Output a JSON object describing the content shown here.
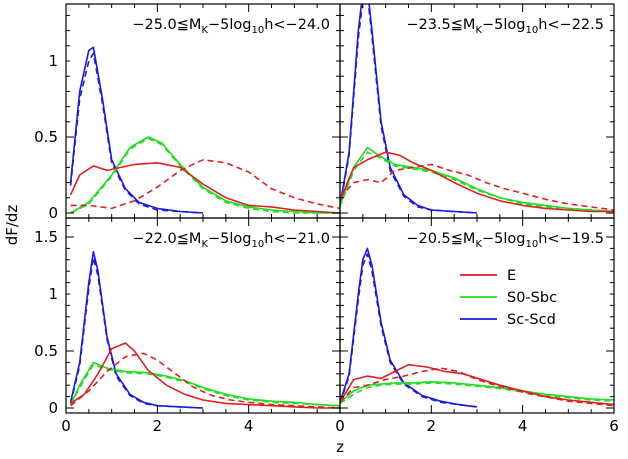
{
  "chart_data": {
    "type": "line",
    "xlabel": "z",
    "ylabel": "dF/dz",
    "xlim": [
      0,
      6
    ],
    "ylim": [
      -0.05,
      1.65
    ],
    "x_ticks": [
      0,
      2,
      4,
      6
    ],
    "y_ticks": [
      0,
      0.5,
      1,
      1.5
    ],
    "y_tick_labels": [
      "0",
      "0.5",
      "1",
      "1.5"
    ],
    "x_tick_labels": [
      "0",
      "2",
      "4",
      "6"
    ],
    "shared_axes": true,
    "layout": "2x2",
    "colors": {
      "E": "#e02020",
      "S0-Sbc": "#22dd22",
      "Sc-Scd": "#1a1ae0"
    },
    "legend": {
      "placement": "panel-4-right",
      "entries": [
        {
          "label": "E",
          "color": "#e02020"
        },
        {
          "label": "S0-Sbc",
          "color": "#22dd22"
        },
        {
          "label": "Sc-Scd",
          "color": "#1a1ae0"
        }
      ]
    },
    "panels": [
      {
        "title": {
          "pre": "−25.0≦M",
          "sub1": "K",
          "mid": "−5log",
          "sub2": "10",
          "post": "h<−24.0"
        },
        "series": [
          {
            "group": "Sc-Scd",
            "style": "solid",
            "x": [
              0.1,
              0.3,
              0.5,
              0.6,
              0.8,
              1.0,
              1.3,
              1.6,
              2.0,
              2.5,
              3.0
            ],
            "y": [
              0.2,
              0.8,
              1.07,
              1.09,
              0.75,
              0.35,
              0.16,
              0.07,
              0.03,
              0.01,
              0.0
            ]
          },
          {
            "group": "Sc-Scd",
            "style": "dashed",
            "x": [
              0.1,
              0.3,
              0.5,
              0.6,
              0.8,
              1.0,
              1.3,
              1.6,
              2.0,
              2.5,
              3.0
            ],
            "y": [
              0.18,
              0.75,
              1.0,
              1.05,
              0.72,
              0.33,
              0.15,
              0.06,
              0.02,
              0.01,
              0.0
            ]
          },
          {
            "group": "S0-Sbc",
            "style": "solid",
            "x": [
              0.1,
              0.5,
              1.0,
              1.4,
              1.8,
              2.1,
              2.5,
              3.0,
              3.5,
              4.0,
              4.5,
              5.0,
              5.5,
              6.0
            ],
            "y": [
              0.0,
              0.07,
              0.25,
              0.43,
              0.5,
              0.46,
              0.32,
              0.17,
              0.08,
              0.04,
              0.02,
              0.01,
              0.0,
              0.0
            ]
          },
          {
            "group": "S0-Sbc",
            "style": "dashed",
            "x": [
              0.1,
              0.5,
              1.0,
              1.4,
              1.8,
              2.1,
              2.5,
              3.0,
              3.5,
              4.0,
              4.5,
              5.0,
              5.5,
              6.0
            ],
            "y": [
              0.0,
              0.06,
              0.24,
              0.42,
              0.49,
              0.45,
              0.31,
              0.16,
              0.07,
              0.03,
              0.01,
              0.0,
              0.0,
              0.0
            ]
          },
          {
            "group": "E",
            "style": "solid",
            "x": [
              0.1,
              0.3,
              0.6,
              0.9,
              1.2,
              1.5,
              2.0,
              2.5,
              3.0,
              3.5,
              4.0,
              4.5,
              5.0,
              5.5,
              6.0
            ],
            "y": [
              0.12,
              0.25,
              0.31,
              0.28,
              0.3,
              0.32,
              0.33,
              0.3,
              0.19,
              0.1,
              0.05,
              0.04,
              0.02,
              0.01,
              0.0
            ]
          },
          {
            "group": "E",
            "style": "dashed",
            "x": [
              0.1,
              0.5,
              1.0,
              1.5,
              2.0,
              2.5,
              3.0,
              3.5,
              4.0,
              4.5,
              5.0,
              5.5,
              6.0
            ],
            "y": [
              0.05,
              0.05,
              0.03,
              0.08,
              0.17,
              0.28,
              0.35,
              0.33,
              0.27,
              0.16,
              0.1,
              0.06,
              0.03
            ]
          }
        ]
      },
      {
        "title": {
          "pre": "−23.5≦M",
          "sub1": "K",
          "mid": "−5log",
          "sub2": "10",
          "post": "h<−22.5"
        },
        "series": [
          {
            "group": "Sc-Scd",
            "style": "solid",
            "x": [
              0.0,
              0.2,
              0.4,
              0.5,
              0.6,
              0.7,
              0.9,
              1.1,
              1.4,
              1.7,
              2.0,
              2.5,
              3.0
            ],
            "y": [
              0.05,
              0.4,
              1.2,
              1.45,
              1.48,
              1.2,
              0.6,
              0.3,
              0.12,
              0.05,
              0.02,
              0.01,
              0.0
            ]
          },
          {
            "group": "Sc-Scd",
            "style": "dashed",
            "x": [
              0.0,
              0.2,
              0.4,
              0.5,
              0.6,
              0.7,
              0.9,
              1.1,
              1.4,
              1.7,
              2.0,
              2.5,
              3.0
            ],
            "y": [
              0.04,
              0.38,
              1.15,
              1.4,
              1.44,
              1.16,
              0.57,
              0.28,
              0.11,
              0.04,
              0.02,
              0.01,
              0.0
            ]
          },
          {
            "group": "S0-Sbc",
            "style": "solid",
            "x": [
              0.0,
              0.3,
              0.6,
              0.9,
              1.2,
              1.6,
              2.0,
              2.5,
              3.0,
              3.5,
              4.0,
              4.5,
              5.0,
              5.5,
              6.0
            ],
            "y": [
              0.05,
              0.3,
              0.43,
              0.37,
              0.32,
              0.3,
              0.28,
              0.23,
              0.16,
              0.1,
              0.07,
              0.05,
              0.03,
              0.02,
              0.01
            ]
          },
          {
            "group": "S0-Sbc",
            "style": "dashed",
            "x": [
              0.0,
              0.3,
              0.6,
              0.9,
              1.2,
              1.6,
              2.0,
              2.5,
              3.0,
              3.5,
              4.0,
              4.5,
              5.0,
              5.5,
              6.0
            ],
            "y": [
              0.04,
              0.28,
              0.4,
              0.36,
              0.31,
              0.29,
              0.27,
              0.22,
              0.15,
              0.1,
              0.06,
              0.04,
              0.03,
              0.02,
              0.01
            ]
          },
          {
            "group": "E",
            "style": "solid",
            "x": [
              0.0,
              0.3,
              0.6,
              1.0,
              1.3,
              1.6,
              2.0,
              2.5,
              3.0,
              3.5,
              4.0,
              4.5,
              5.0,
              5.5,
              6.0
            ],
            "y": [
              0.08,
              0.3,
              0.35,
              0.4,
              0.38,
              0.33,
              0.28,
              0.2,
              0.13,
              0.08,
              0.05,
              0.03,
              0.02,
              0.01,
              0.01
            ]
          },
          {
            "group": "E",
            "style": "dashed",
            "x": [
              0.0,
              0.3,
              0.6,
              0.9,
              1.2,
              1.6,
              2.0,
              2.4,
              2.8,
              3.2,
              3.6,
              4.0,
              4.5,
              5.0,
              5.5,
              6.0
            ],
            "y": [
              0.1,
              0.2,
              0.22,
              0.2,
              0.28,
              0.3,
              0.32,
              0.28,
              0.25,
              0.2,
              0.16,
              0.13,
              0.09,
              0.06,
              0.04,
              0.02
            ]
          }
        ]
      },
      {
        "title": {
          "pre": "−22.0≦M",
          "sub1": "K",
          "mid": "−5log",
          "sub2": "10",
          "post": "h<−21.0"
        },
        "series": [
          {
            "group": "Sc-Scd",
            "style": "solid",
            "x": [
              0.1,
              0.3,
              0.5,
              0.6,
              0.7,
              0.9,
              1.1,
              1.4,
              1.7,
              2.0,
              2.5,
              3.0
            ],
            "y": [
              0.05,
              0.4,
              1.1,
              1.37,
              1.2,
              0.62,
              0.3,
              0.12,
              0.05,
              0.02,
              0.01,
              0.0
            ]
          },
          {
            "group": "Sc-Scd",
            "style": "dashed",
            "x": [
              0.1,
              0.3,
              0.5,
              0.6,
              0.7,
              0.9,
              1.1,
              1.4,
              1.7,
              2.0,
              2.5,
              3.0
            ],
            "y": [
              0.04,
              0.37,
              1.05,
              1.32,
              1.16,
              0.6,
              0.28,
              0.11,
              0.04,
              0.02,
              0.01,
              0.0
            ]
          },
          {
            "group": "S0-Sbc",
            "style": "solid",
            "x": [
              0.1,
              0.3,
              0.6,
              0.9,
              1.3,
              1.8,
              2.2,
              2.6,
              3.0,
              3.5,
              4.0,
              4.5,
              5.0,
              5.5,
              6.0
            ],
            "y": [
              0.03,
              0.2,
              0.4,
              0.35,
              0.32,
              0.31,
              0.28,
              0.24,
              0.18,
              0.12,
              0.08,
              0.06,
              0.05,
              0.03,
              0.02
            ]
          },
          {
            "group": "S0-Sbc",
            "style": "dashed",
            "x": [
              0.1,
              0.3,
              0.6,
              0.9,
              1.3,
              1.8,
              2.2,
              2.6,
              3.0,
              3.5,
              4.0,
              4.5,
              5.0,
              5.5,
              6.0
            ],
            "y": [
              0.03,
              0.18,
              0.38,
              0.34,
              0.31,
              0.3,
              0.27,
              0.23,
              0.17,
              0.11,
              0.07,
              0.05,
              0.04,
              0.03,
              0.02
            ]
          },
          {
            "group": "E",
            "style": "solid",
            "x": [
              0.1,
              0.4,
              0.7,
              1.0,
              1.3,
              1.5,
              1.8,
              2.2,
              2.6,
              3.0,
              3.5,
              4.0,
              4.5,
              5.0,
              5.5,
              6.0
            ],
            "y": [
              0.04,
              0.12,
              0.3,
              0.52,
              0.57,
              0.5,
              0.33,
              0.2,
              0.12,
              0.07,
              0.04,
              0.03,
              0.02,
              0.01,
              0.0,
              0.0
            ]
          },
          {
            "group": "E",
            "style": "dashed",
            "x": [
              0.1,
              0.5,
              0.9,
              1.3,
              1.7,
              2.0,
              2.4,
              2.8,
              3.2,
              3.6,
              4.0,
              4.5,
              5.0,
              5.5,
              6.0
            ],
            "y": [
              0.02,
              0.15,
              0.32,
              0.45,
              0.48,
              0.42,
              0.3,
              0.18,
              0.11,
              0.07,
              0.05,
              0.03,
              0.02,
              0.01,
              0.0
            ]
          }
        ]
      },
      {
        "title": {
          "pre": "−20.5≦M",
          "sub1": "K",
          "mid": "−5log",
          "sub2": "10",
          "post": "h<−19.5"
        },
        "series": [
          {
            "group": "Sc-Scd",
            "style": "solid",
            "x": [
              0.0,
              0.2,
              0.4,
              0.5,
              0.6,
              0.7,
              0.9,
              1.1,
              1.4,
              1.8,
              2.2,
              2.6,
              3.0
            ],
            "y": [
              0.05,
              0.3,
              1.0,
              1.3,
              1.4,
              1.25,
              0.75,
              0.42,
              0.22,
              0.11,
              0.06,
              0.03,
              0.01
            ]
          },
          {
            "group": "Sc-Scd",
            "style": "dashed",
            "x": [
              0.0,
              0.2,
              0.4,
              0.5,
              0.6,
              0.7,
              0.9,
              1.1,
              1.4,
              1.8,
              2.2,
              2.6,
              3.0
            ],
            "y": [
              0.04,
              0.28,
              0.95,
              1.25,
              1.35,
              1.2,
              0.72,
              0.4,
              0.21,
              0.1,
              0.05,
              0.03,
              0.01
            ]
          },
          {
            "group": "S0-Sbc",
            "style": "solid",
            "x": [
              0.0,
              0.3,
              0.6,
              0.9,
              1.2,
              1.6,
              2.0,
              2.5,
              3.0,
              3.5,
              4.0,
              4.5,
              5.0,
              5.5,
              6.0
            ],
            "y": [
              0.05,
              0.15,
              0.2,
              0.21,
              0.22,
              0.22,
              0.23,
              0.22,
              0.2,
              0.18,
              0.15,
              0.12,
              0.1,
              0.08,
              0.07
            ]
          },
          {
            "group": "S0-Sbc",
            "style": "dashed",
            "x": [
              0.0,
              0.3,
              0.6,
              0.9,
              1.2,
              1.6,
              2.0,
              2.5,
              3.0,
              3.5,
              4.0,
              4.5,
              5.0,
              5.5,
              6.0
            ],
            "y": [
              0.04,
              0.12,
              0.18,
              0.2,
              0.21,
              0.21,
              0.22,
              0.21,
              0.19,
              0.17,
              0.14,
              0.11,
              0.09,
              0.07,
              0.06
            ]
          },
          {
            "group": "E",
            "style": "solid",
            "x": [
              0.0,
              0.3,
              0.6,
              0.9,
              1.2,
              1.5,
              1.9,
              2.3,
              2.7,
              3.1,
              3.5,
              4.0,
              4.5,
              5.0,
              5.5,
              6.0
            ],
            "y": [
              0.05,
              0.25,
              0.28,
              0.26,
              0.32,
              0.38,
              0.36,
              0.32,
              0.3,
              0.25,
              0.2,
              0.15,
              0.1,
              0.07,
              0.05,
              0.03
            ]
          },
          {
            "group": "E",
            "style": "dashed",
            "x": [
              0.0,
              0.3,
              0.6,
              1.0,
              1.4,
              1.8,
              2.2,
              2.6,
              3.0,
              3.4,
              3.8,
              4.2,
              4.6,
              5.0,
              5.5,
              6.0
            ],
            "y": [
              0.05,
              0.18,
              0.2,
              0.25,
              0.28,
              0.32,
              0.35,
              0.32,
              0.25,
              0.2,
              0.16,
              0.12,
              0.09,
              0.06,
              0.04,
              0.02
            ]
          }
        ]
      }
    ]
  }
}
